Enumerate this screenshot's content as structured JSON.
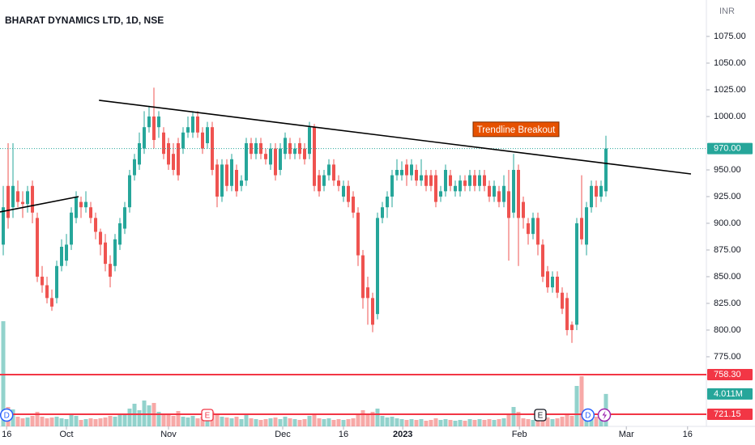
{
  "chart_data": {
    "type": "candlestick",
    "title": "BHARAT DYNAMICS LTD, 1D, NSE",
    "currency_label": "INR",
    "up_color": "#26a69a",
    "down_color": "#ef5350",
    "x": [
      0,
      1,
      2,
      3,
      4,
      5,
      6,
      7,
      8,
      9,
      10,
      11,
      12,
      13,
      14,
      15,
      16,
      17,
      18,
      19,
      20,
      21,
      22,
      23,
      24,
      25,
      26,
      27,
      28,
      29,
      30,
      31,
      32,
      33,
      34,
      35,
      36,
      37,
      38,
      39,
      40,
      41,
      42,
      43,
      44,
      45,
      46,
      47,
      48,
      49,
      50,
      51,
      52,
      53,
      54,
      55,
      56,
      57,
      58,
      59,
      60,
      61,
      62,
      63,
      64,
      65,
      66,
      67,
      68,
      69,
      70,
      71,
      72,
      73,
      74,
      75,
      76,
      77,
      78,
      79,
      80,
      81,
      82,
      83,
      84,
      85,
      86,
      87,
      88,
      89,
      90,
      91,
      92,
      93,
      94,
      95,
      96,
      97,
      98,
      99,
      100,
      101,
      102,
      103,
      104,
      105,
      106,
      107,
      108,
      109,
      110,
      111,
      112,
      113,
      114,
      115,
      116,
      117,
      118,
      119,
      120,
      121,
      122,
      123,
      124
    ],
    "open": [
      880,
      935,
      915,
      930,
      920,
      918,
      935,
      905,
      850,
      842,
      830,
      830,
      860,
      865,
      880,
      905,
      920,
      915,
      915,
      905,
      892,
      882,
      862,
      860,
      880,
      895,
      915,
      945,
      955,
      970,
      990,
      1000,
      990,
      985,
      975,
      965,
      975,
      970,
      985,
      985,
      1000,
      985,
      975,
      990,
      955,
      925,
      955,
      935,
      950,
      935,
      940,
      975,
      965,
      975,
      965,
      955,
      970,
      950,
      965,
      975,
      965,
      975,
      970,
      965,
      990,
      945,
      935,
      945,
      955,
      940,
      925,
      935,
      925,
      910,
      870,
      840,
      830,
      815,
      905,
      915,
      925,
      945,
      945,
      955,
      945,
      950,
      940,
      945,
      945,
      945,
      925,
      930,
      945,
      930,
      930,
      940,
      935,
      945,
      935,
      945,
      935,
      925,
      930,
      920,
      930,
      910,
      950,
      920,
      900,
      890,
      905,
      880,
      855,
      840,
      850,
      835,
      830,
      805,
      805,
      905,
      880,
      915,
      935,
      925,
      930
    ],
    "high": [
      935,
      975,
      975,
      940,
      930,
      935,
      940,
      910,
      860,
      850,
      838,
      865,
      885,
      890,
      915,
      930,
      925,
      930,
      920,
      910,
      895,
      890,
      870,
      890,
      905,
      920,
      950,
      965,
      985,
      1005,
      1010,
      1027,
      1005,
      990,
      980,
      975,
      980,
      990,
      1000,
      1005,
      1005,
      990,
      995,
      995,
      960,
      960,
      960,
      965,
      955,
      945,
      980,
      980,
      980,
      980,
      970,
      975,
      975,
      975,
      985,
      980,
      975,
      980,
      975,
      995,
      993,
      950,
      950,
      960,
      960,
      945,
      940,
      940,
      930,
      915,
      875,
      850,
      835,
      910,
      920,
      930,
      950,
      960,
      958,
      960,
      960,
      955,
      960,
      950,
      950,
      950,
      935,
      955,
      950,
      940,
      945,
      945,
      950,
      950,
      950,
      950,
      940,
      940,
      935,
      945,
      950,
      965,
      955,
      925,
      905,
      910,
      910,
      885,
      860,
      855,
      855,
      840,
      835,
      808,
      905,
      945,
      920,
      940,
      940,
      940,
      982
    ],
    "low": [
      870,
      895,
      905,
      915,
      905,
      910,
      900,
      845,
      835,
      825,
      818,
      825,
      855,
      860,
      875,
      900,
      905,
      910,
      900,
      885,
      870,
      855,
      840,
      855,
      875,
      890,
      910,
      940,
      950,
      965,
      985,
      970,
      980,
      960,
      950,
      945,
      940,
      965,
      980,
      980,
      980,
      965,
      970,
      945,
      915,
      920,
      930,
      930,
      925,
      930,
      935,
      960,
      960,
      960,
      955,
      950,
      940,
      945,
      960,
      960,
      960,
      960,
      955,
      960,
      930,
      925,
      930,
      940,
      935,
      930,
      920,
      915,
      905,
      860,
      820,
      805,
      798,
      810,
      900,
      905,
      915,
      940,
      940,
      935,
      940,
      935,
      935,
      930,
      930,
      915,
      920,
      925,
      930,
      925,
      925,
      930,
      930,
      930,
      930,
      930,
      920,
      920,
      915,
      915,
      865,
      905,
      860,
      895,
      880,
      885,
      870,
      845,
      835,
      835,
      830,
      815,
      795,
      788,
      800,
      880,
      870,
      910,
      915,
      920,
      925
    ],
    "close": [
      915,
      905,
      935,
      920,
      918,
      930,
      910,
      850,
      842,
      830,
      822,
      860,
      878,
      880,
      910,
      925,
      915,
      920,
      905,
      892,
      880,
      862,
      850,
      885,
      900,
      915,
      945,
      960,
      975,
      990,
      1000,
      978,
      1000,
      965,
      955,
      950,
      945,
      985,
      990,
      1000,
      985,
      970,
      990,
      950,
      925,
      955,
      935,
      960,
      930,
      940,
      975,
      965,
      975,
      965,
      960,
      970,
      945,
      970,
      980,
      965,
      970,
      965,
      960,
      990,
      935,
      930,
      945,
      955,
      940,
      935,
      935,
      920,
      910,
      870,
      830,
      830,
      805,
      905,
      915,
      925,
      945,
      950,
      950,
      945,
      955,
      940,
      945,
      935,
      935,
      920,
      930,
      950,
      935,
      935,
      940,
      935,
      945,
      935,
      945,
      935,
      925,
      935,
      920,
      935,
      905,
      950,
      905,
      905,
      890,
      905,
      880,
      850,
      840,
      850,
      835,
      820,
      800,
      800,
      900,
      885,
      915,
      935,
      925,
      935,
      970
    ],
    "volume": {
      "values": [
        13,
        2.4,
        2.1,
        1.2,
        1.0,
        1.1,
        1.3,
        1.8,
        1.2,
        1.0,
        1.1,
        1.2,
        1.0,
        0.9,
        1.4,
        1.3,
        0.8,
        0.9,
        1.0,
        0.9,
        1.0,
        1.1,
        1.3,
        1.2,
        1.5,
        1.6,
        2.2,
        2.8,
        2.0,
        3.2,
        2.6,
        2.9,
        1.8,
        1.5,
        1.4,
        1.3,
        1.9,
        1.2,
        1.1,
        1.3,
        1.0,
        1.2,
        0.9,
        1.8,
        1.6,
        1.2,
        1.1,
        1.0,
        1.2,
        0.9,
        1.5,
        1.0,
        0.9,
        0.8,
        0.9,
        1.0,
        1.1,
        0.9,
        1.2,
        1.0,
        0.9,
        0.8,
        0.9,
        1.3,
        1.6,
        1.0,
        0.9,
        1.0,
        0.8,
        0.9,
        0.8,
        0.9,
        1.0,
        1.6,
        2.0,
        1.4,
        1.8,
        2.2,
        1.3,
        1.1,
        1.2,
        1.0,
        0.9,
        0.8,
        0.9,
        0.8,
        0.9,
        0.7,
        0.8,
        1.0,
        0.8,
        0.9,
        0.8,
        0.7,
        0.8,
        0.7,
        0.9,
        0.8,
        0.9,
        0.8,
        0.9,
        0.8,
        0.9,
        1.0,
        1.5,
        2.4,
        1.8,
        1.0,
        0.9,
        0.8,
        1.0,
        1.2,
        1.1,
        0.9,
        1.0,
        1.2,
        1.5,
        1.3,
        5.0,
        6.2,
        2.0,
        1.6,
        1.2,
        1.4,
        4.011
      ],
      "last_label": "4.011M",
      "up_color": "rgba(38,166,154,0.5)",
      "down_color": "rgba(239,83,80,0.5)",
      "tag_color": "#26a69a"
    },
    "xlim": [
      -0.67,
      144.67
    ],
    "xticks": [
      {
        "value": 0.7,
        "label": "16"
      },
      {
        "value": 13,
        "label": "Oct"
      },
      {
        "value": 34,
        "label": "Nov"
      },
      {
        "value": 57.5,
        "label": "Dec"
      },
      {
        "value": 70,
        "label": "16"
      },
      {
        "value": 82.2,
        "label": "2023"
      },
      {
        "value": 106.2,
        "label": "Feb"
      },
      {
        "value": 128.2,
        "label": "Mar"
      },
      {
        "value": 140.8,
        "label": "16"
      }
    ],
    "ylim": [
      709.8,
      1109.1
    ],
    "yticks": [
      {
        "value": 1075,
        "label": "1075.00"
      },
      {
        "value": 1050,
        "label": "1050.00"
      },
      {
        "value": 1025,
        "label": "1025.00"
      },
      {
        "value": 1000,
        "label": "1000.00"
      },
      {
        "value": 950,
        "label": "950.00"
      },
      {
        "value": 925,
        "label": "925.00"
      },
      {
        "value": 900,
        "label": "900.00"
      },
      {
        "value": 875,
        "label": "875.00"
      },
      {
        "value": 850,
        "label": "850.00"
      },
      {
        "value": 825,
        "label": "825.00"
      },
      {
        "value": 800,
        "label": "800.00"
      },
      {
        "value": 775,
        "label": "775.00"
      }
    ],
    "y2lim": [
      0,
      52.7
    ],
    "last_price": {
      "value": 970,
      "label": "970.00",
      "color": "#26a69a"
    },
    "hlines": [
      {
        "value": 758.3,
        "label": "758.30",
        "color": "#f23645"
      },
      {
        "value": 721.15,
        "label": "721.15",
        "color": "#f23645"
      }
    ],
    "trendlines": [
      {
        "x": [
          19.7,
          141.5
        ],
        "y": [
          1015.2,
          946.2
        ]
      },
      {
        "x": [
          -0.67,
          15.5
        ],
        "y": [
          910.6,
          925
        ]
      }
    ],
    "annotations": [
      {
        "text": "Trendline Breakout",
        "x": 105.5,
        "y": 988
      }
    ],
    "events": [
      {
        "x": 0.7,
        "label": "D"
      },
      {
        "x": 42,
        "label": "E"
      },
      {
        "x": 110.5,
        "label": "E"
      },
      {
        "x": 120.3,
        "label": "D"
      }
    ]
  }
}
